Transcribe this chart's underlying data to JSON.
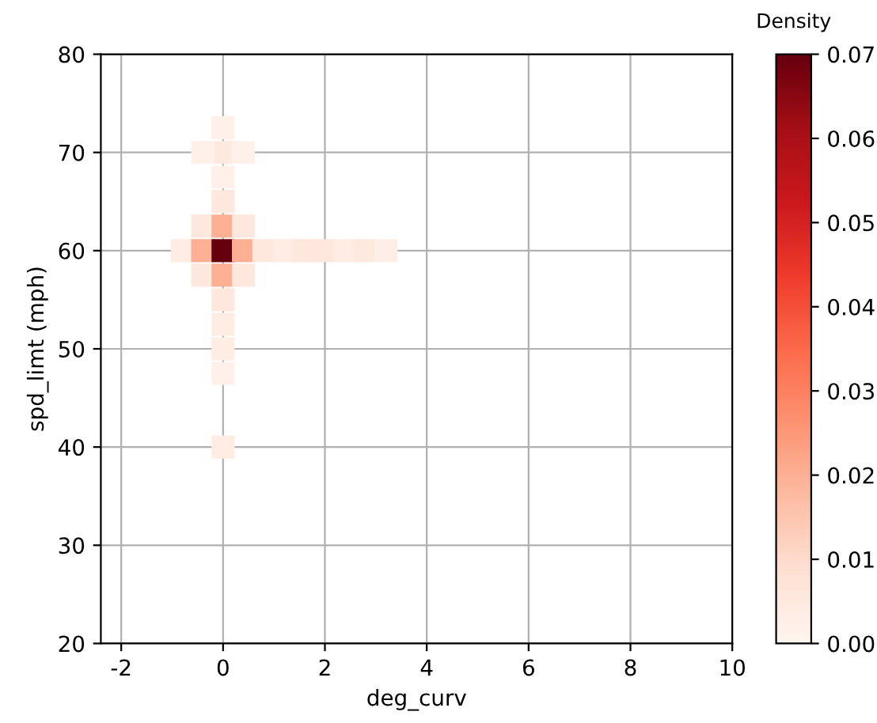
{
  "chart_data": {
    "type": "scatter",
    "xlabel": "deg_curv",
    "ylabel": "spd_limt (mph)",
    "clabel": "Density",
    "marker": "square",
    "x": [
      0,
      0,
      -0.4,
      0.4,
      0,
      0,
      -0.4,
      0,
      0.4,
      -0.8,
      -0.4,
      0,
      0.4,
      0.8,
      1.2,
      1.6,
      2.0,
      2.4,
      2.8,
      3.2,
      -0.4,
      0,
      0.4,
      0,
      0,
      0,
      0,
      0
    ],
    "values": [
      72.5,
      70,
      70,
      70,
      67.5,
      65,
      62.5,
      62.5,
      62.5,
      60,
      60,
      60,
      60,
      60,
      60,
      60,
      60,
      60,
      60,
      60,
      57.5,
      57.5,
      57.5,
      55,
      52.5,
      50,
      47.5,
      40
    ],
    "cvalues": [
      0.002,
      0.005,
      0.002,
      0.002,
      0.002,
      0.006,
      0.006,
      0.02,
      0.006,
      0.004,
      0.02,
      0.07,
      0.02,
      0.006,
      0.004,
      0.006,
      0.006,
      0.004,
      0.005,
      0.003,
      0.006,
      0.02,
      0.006,
      0.006,
      0.004,
      0.004,
      0.002,
      0.004
    ],
    "xlim": [
      -2.4,
      10
    ],
    "xticks": [
      -2,
      0,
      2,
      4,
      6,
      8,
      10
    ],
    "ylim": [
      20,
      80
    ],
    "yticks": [
      20,
      30,
      40,
      50,
      60,
      70,
      80
    ],
    "clim": [
      0,
      0.07
    ],
    "cticks": [
      {
        "value": 0,
        "label": "0.00"
      },
      {
        "value": 0.01,
        "label": "0.01"
      },
      {
        "value": 0.02,
        "label": "0.02"
      },
      {
        "value": 0.03,
        "label": "0.03"
      },
      {
        "value": 0.04,
        "label": "0.04"
      },
      {
        "value": 0.05,
        "label": "0.05"
      },
      {
        "value": 0.06,
        "label": "0.06"
      },
      {
        "value": 0.07,
        "label": "0.07"
      }
    ],
    "grid": true
  }
}
